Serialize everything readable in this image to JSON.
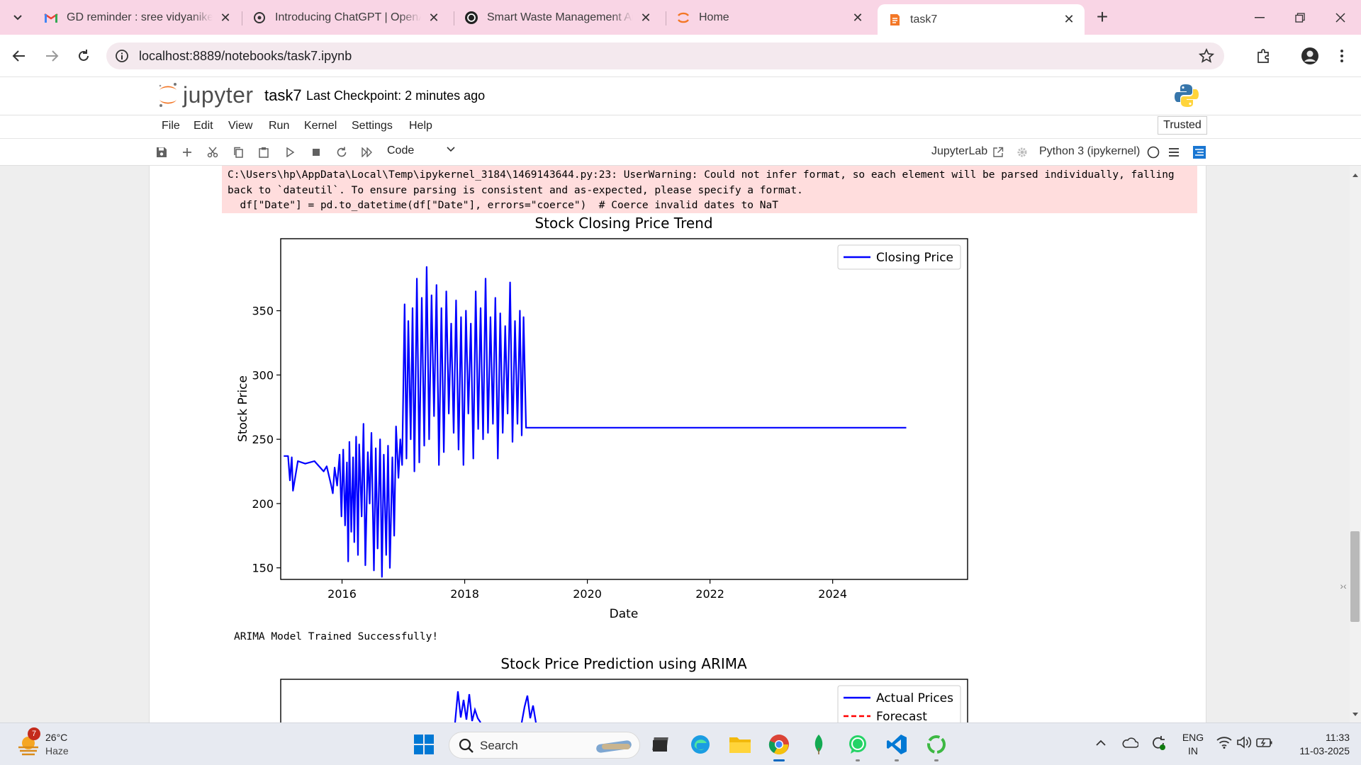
{
  "browser": {
    "tabs": [
      {
        "title": "GD reminder : sree vidyanikethan",
        "icon": "gmail-icon"
      },
      {
        "title": "Introducing ChatGPT | OpenAI",
        "icon": "openai-icon"
      },
      {
        "title": "Smart Waste Management Analysis",
        "icon": "openai-icon"
      },
      {
        "title": "Home",
        "icon": "jupyter-home-icon"
      },
      {
        "title": "task7",
        "icon": "jupyter-notebook-icon",
        "active": true
      }
    ],
    "url": "localhost:8889/notebooks/task7.ipynb"
  },
  "jupyter": {
    "logo_text": "jupyter",
    "notebook_name": "task7",
    "checkpoint": "Last Checkpoint: 2 minutes ago",
    "menu": [
      "File",
      "Edit",
      "View",
      "Run",
      "Kernel",
      "Settings",
      "Help"
    ],
    "trusted": "Trusted",
    "cell_type": "Code",
    "jupyterlab_link": "JupyterLab",
    "kernel": "Python 3 (ipykernel)"
  },
  "output": {
    "stderr": "C:\\Users\\hp\\AppData\\Local\\Temp\\ipykernel_3184\\1469143644.py:23: UserWarning: Could not infer format, so each element will be parsed individually, falling\nback to `dateutil`. To ensure parsing is consistent and as-expected, please specify a format.\n  df[\"Date\"] = pd.to_datetime(df[\"Date\"], errors=\"coerce\")  # Coerce invalid dates to NaT",
    "stdout": "ARIMA Model Trained Successfully!"
  },
  "chart_data": [
    {
      "type": "line",
      "title": "Stock Closing Price Trend",
      "xlabel": "Date",
      "ylabel": "Stock Price",
      "xlim": [
        2015.0,
        2026.2
      ],
      "ylim": [
        141,
        406
      ],
      "xticks": [
        "2016",
        "2018",
        "2020",
        "2022",
        "2024"
      ],
      "yticks": [
        "150",
        "200",
        "250",
        "300",
        "350"
      ],
      "legend": "top-right",
      "series": [
        {
          "name": "Closing Price",
          "color": "#0000ff",
          "x": [
            2015.05,
            2015.12,
            2015.15,
            2015.18,
            2015.2,
            2015.28,
            2015.4,
            2015.55,
            2015.7,
            2015.75,
            2015.82,
            2015.85,
            2015.88,
            2015.92,
            2015.96,
            2015.99,
            2016.02,
            2016.05,
            2016.08,
            2016.1,
            2016.12,
            2016.15,
            2016.18,
            2016.2,
            2016.23,
            2016.26,
            2016.28,
            2016.32,
            2016.35,
            2016.38,
            2016.42,
            2016.45,
            2016.48,
            2016.52,
            2016.55,
            2016.58,
            2016.62,
            2016.65,
            2016.68,
            2016.72,
            2016.75,
            2016.78,
            2016.82,
            2016.85,
            2016.88,
            2016.92,
            2016.95,
            2016.98,
            2017.02,
            2017.05,
            2017.08,
            2017.12,
            2017.15,
            2017.18,
            2017.22,
            2017.26,
            2017.3,
            2017.34,
            2017.38,
            2017.42,
            2017.46,
            2017.5,
            2017.54,
            2017.58,
            2017.62,
            2017.66,
            2017.7,
            2017.74,
            2017.78,
            2017.82,
            2017.86,
            2017.9,
            2017.94,
            2017.98,
            2018.02,
            2018.06,
            2018.1,
            2018.14,
            2018.18,
            2018.22,
            2018.26,
            2018.3,
            2018.34,
            2018.38,
            2018.42,
            2018.46,
            2018.5,
            2018.54,
            2018.58,
            2018.62,
            2018.66,
            2018.7,
            2018.74,
            2018.78,
            2018.82,
            2018.86,
            2018.9,
            2018.93,
            2018.96,
            2019.0,
            2020.0,
            2022.0,
            2024.0,
            2025.2
          ],
          "y": [
            237,
            237,
            218,
            236,
            210,
            233,
            231,
            233,
            225,
            229,
            215,
            208,
            228,
            214,
            238,
            190,
            242,
            183,
            232,
            155,
            248,
            178,
            236,
            170,
            252,
            160,
            246,
            190,
            262,
            152,
            240,
            200,
            255,
            148,
            243,
            165,
            250,
            143,
            238,
            160,
            245,
            150,
            236,
            175,
            260,
            220,
            250,
            230,
            355,
            235,
            342,
            250,
            352,
            225,
            375,
            232,
            360,
            245,
            384,
            250,
            362,
            268,
            370,
            230,
            352,
            240,
            365,
            270,
            340,
            255,
            358,
            242,
            345,
            230,
            350,
            270,
            340,
            235,
            365,
            258,
            352,
            250,
            375,
            255,
            345,
            262,
            360,
            235,
            348,
            255,
            338,
            270,
            372,
            248,
            342,
            262,
            350,
            253,
            345,
            259,
            259,
            259,
            259,
            259
          ]
        }
      ]
    },
    {
      "type": "line",
      "title": "Stock Price Prediction using ARIMA",
      "legend": "top-right",
      "series": [
        {
          "name": "Actual Prices",
          "color": "#0000ff"
        },
        {
          "name": "Forecast",
          "color": "#ff0000"
        }
      ]
    }
  ],
  "taskbar": {
    "weather_temp": "26°C",
    "weather_cond": "Haze",
    "weather_badge": "7",
    "search_label": "Search",
    "lang_line1": "ENG",
    "lang_line2": "IN",
    "time": "11:33",
    "date": "11-03-2025"
  }
}
